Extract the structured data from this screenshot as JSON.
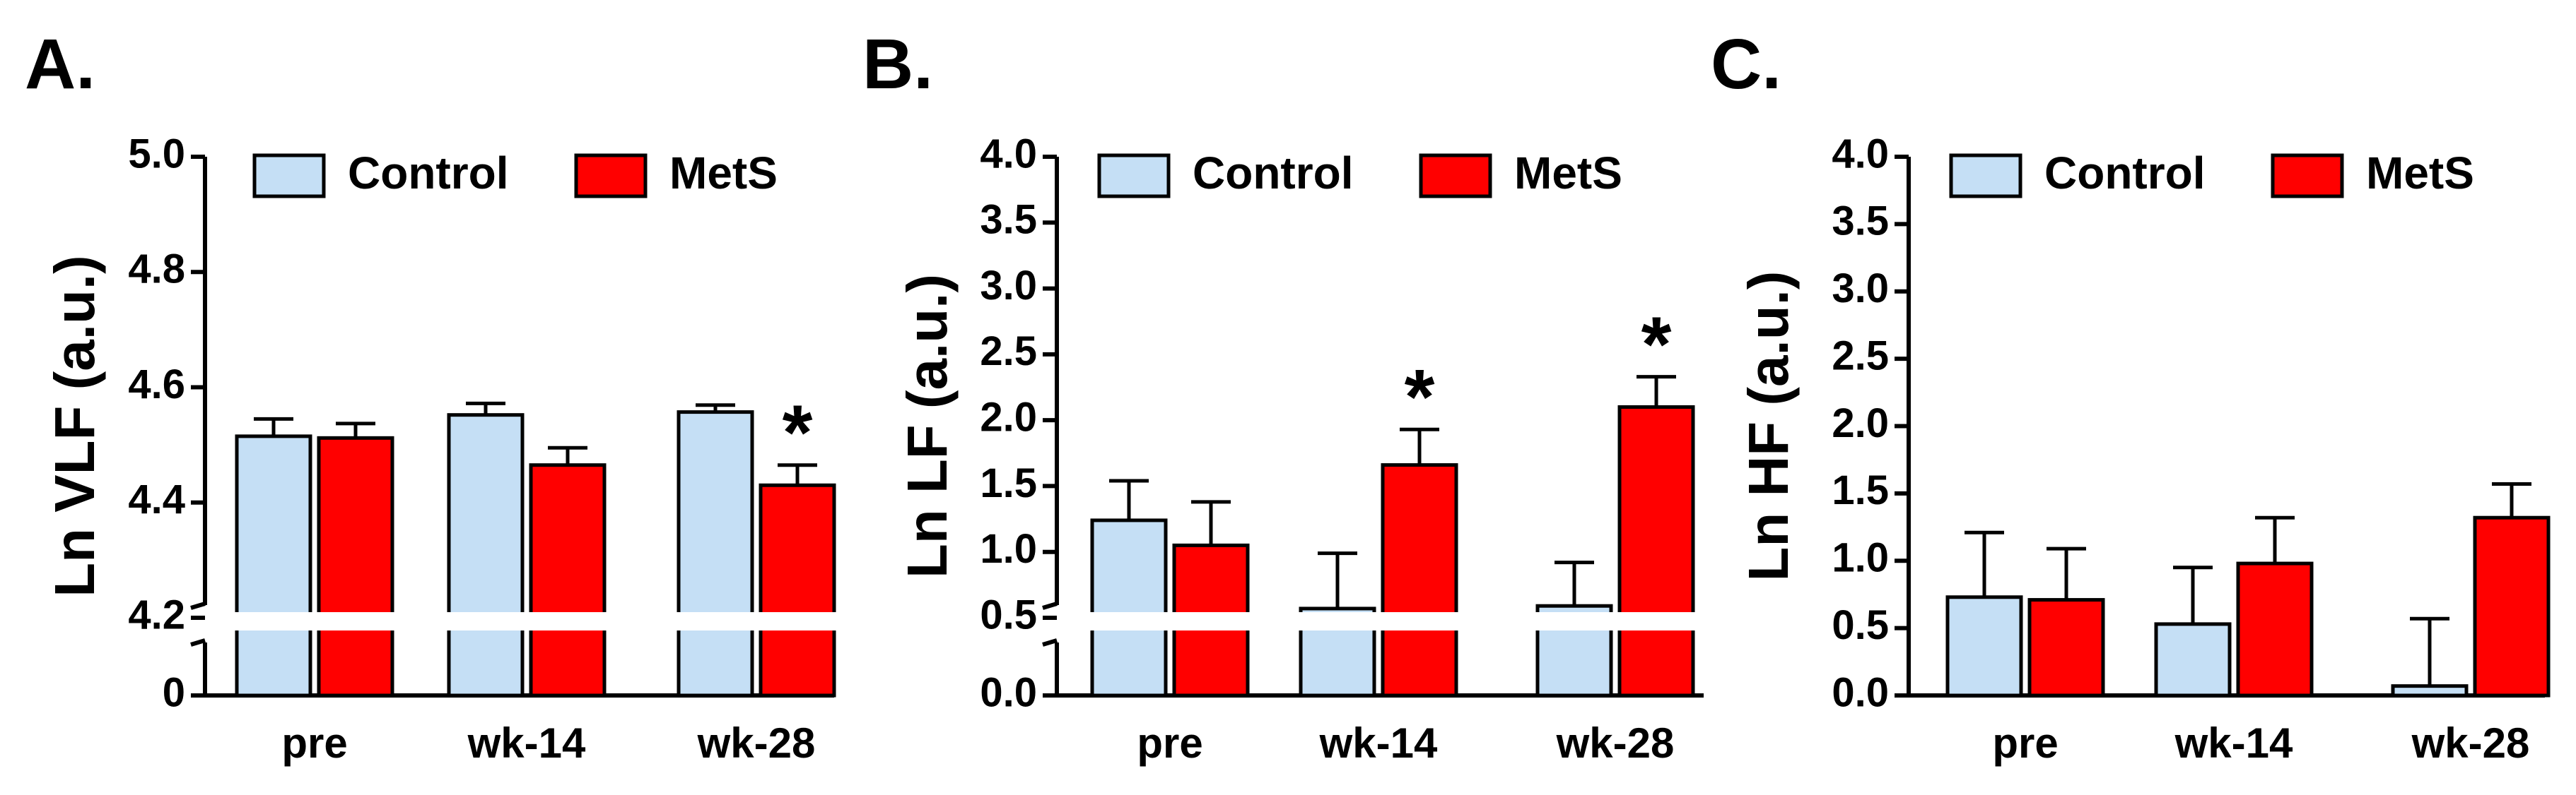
{
  "figure": {
    "background": "#ffffff"
  },
  "colors": {
    "control": "#c5dff5",
    "mets": "#ff0000",
    "stroke": "#000000"
  },
  "legend": {
    "control_label": "Control",
    "mets_label": "MetS"
  },
  "chart_data": [
    {
      "type": "bar",
      "panel_label": "A.",
      "title": "",
      "xlabel": "",
      "ylabel": "Ln VLF (a.u.)",
      "categories": [
        "pre",
        "wk-14",
        "wk-28"
      ],
      "series": [
        {
          "name": "Control",
          "values": [
            4.515,
            4.552,
            4.557
          ],
          "errors": [
            0.03,
            0.02,
            0.012
          ]
        },
        {
          "name": "MetS",
          "values": [
            4.512,
            4.465,
            4.43
          ],
          "errors": [
            0.025,
            0.03,
            0.035
          ]
        }
      ],
      "ylim": [
        4.2,
        5.0
      ],
      "yticks": [
        "4.2",
        "4.4",
        "4.6",
        "4.8",
        "5.0"
      ],
      "broken_axis": true,
      "lower_tick": "0",
      "significance": [
        {
          "category": "wk-28",
          "series": "MetS",
          "mark": "*"
        }
      ],
      "legend_position": "top"
    },
    {
      "type": "bar",
      "panel_label": "B.",
      "title": "",
      "xlabel": "",
      "ylabel": "Ln LF (a.u.)",
      "categories": [
        "pre",
        "wk-14",
        "wk-28"
      ],
      "series": [
        {
          "name": "Control",
          "values": [
            1.24,
            0.57,
            0.59
          ],
          "errors": [
            0.3,
            0.42,
            0.33
          ]
        },
        {
          "name": "MetS",
          "values": [
            1.05,
            1.66,
            2.1
          ],
          "errors": [
            0.33,
            0.27,
            0.23
          ]
        }
      ],
      "ylim": [
        0.5,
        4.0
      ],
      "yticks": [
        "0.5",
        "1.0",
        "1.5",
        "2.0",
        "2.5",
        "3.0",
        "3.5",
        "4.0"
      ],
      "broken_axis": true,
      "lower_tick": "0.0",
      "significance": [
        {
          "category": "wk-14",
          "series": "MetS",
          "mark": "*"
        },
        {
          "category": "wk-28",
          "series": "MetS",
          "mark": "*"
        }
      ],
      "legend_position": "top"
    },
    {
      "type": "bar",
      "panel_label": "C.",
      "title": "",
      "xlabel": "",
      "ylabel": "Ln HF (a.u.)",
      "categories": [
        "pre",
        "wk-14",
        "wk-28"
      ],
      "series": [
        {
          "name": "Control",
          "values": [
            0.73,
            0.53,
            0.07
          ],
          "errors": [
            0.48,
            0.42,
            0.5
          ]
        },
        {
          "name": "MetS",
          "values": [
            0.71,
            0.98,
            1.32
          ],
          "errors": [
            0.38,
            0.34,
            0.25
          ]
        }
      ],
      "ylim": [
        0.0,
        4.0
      ],
      "yticks": [
        "0.0",
        "0.5",
        "1.0",
        "1.5",
        "2.0",
        "2.5",
        "3.0",
        "3.5",
        "4.0"
      ],
      "broken_axis": false,
      "significance": [],
      "legend_position": "top"
    }
  ]
}
